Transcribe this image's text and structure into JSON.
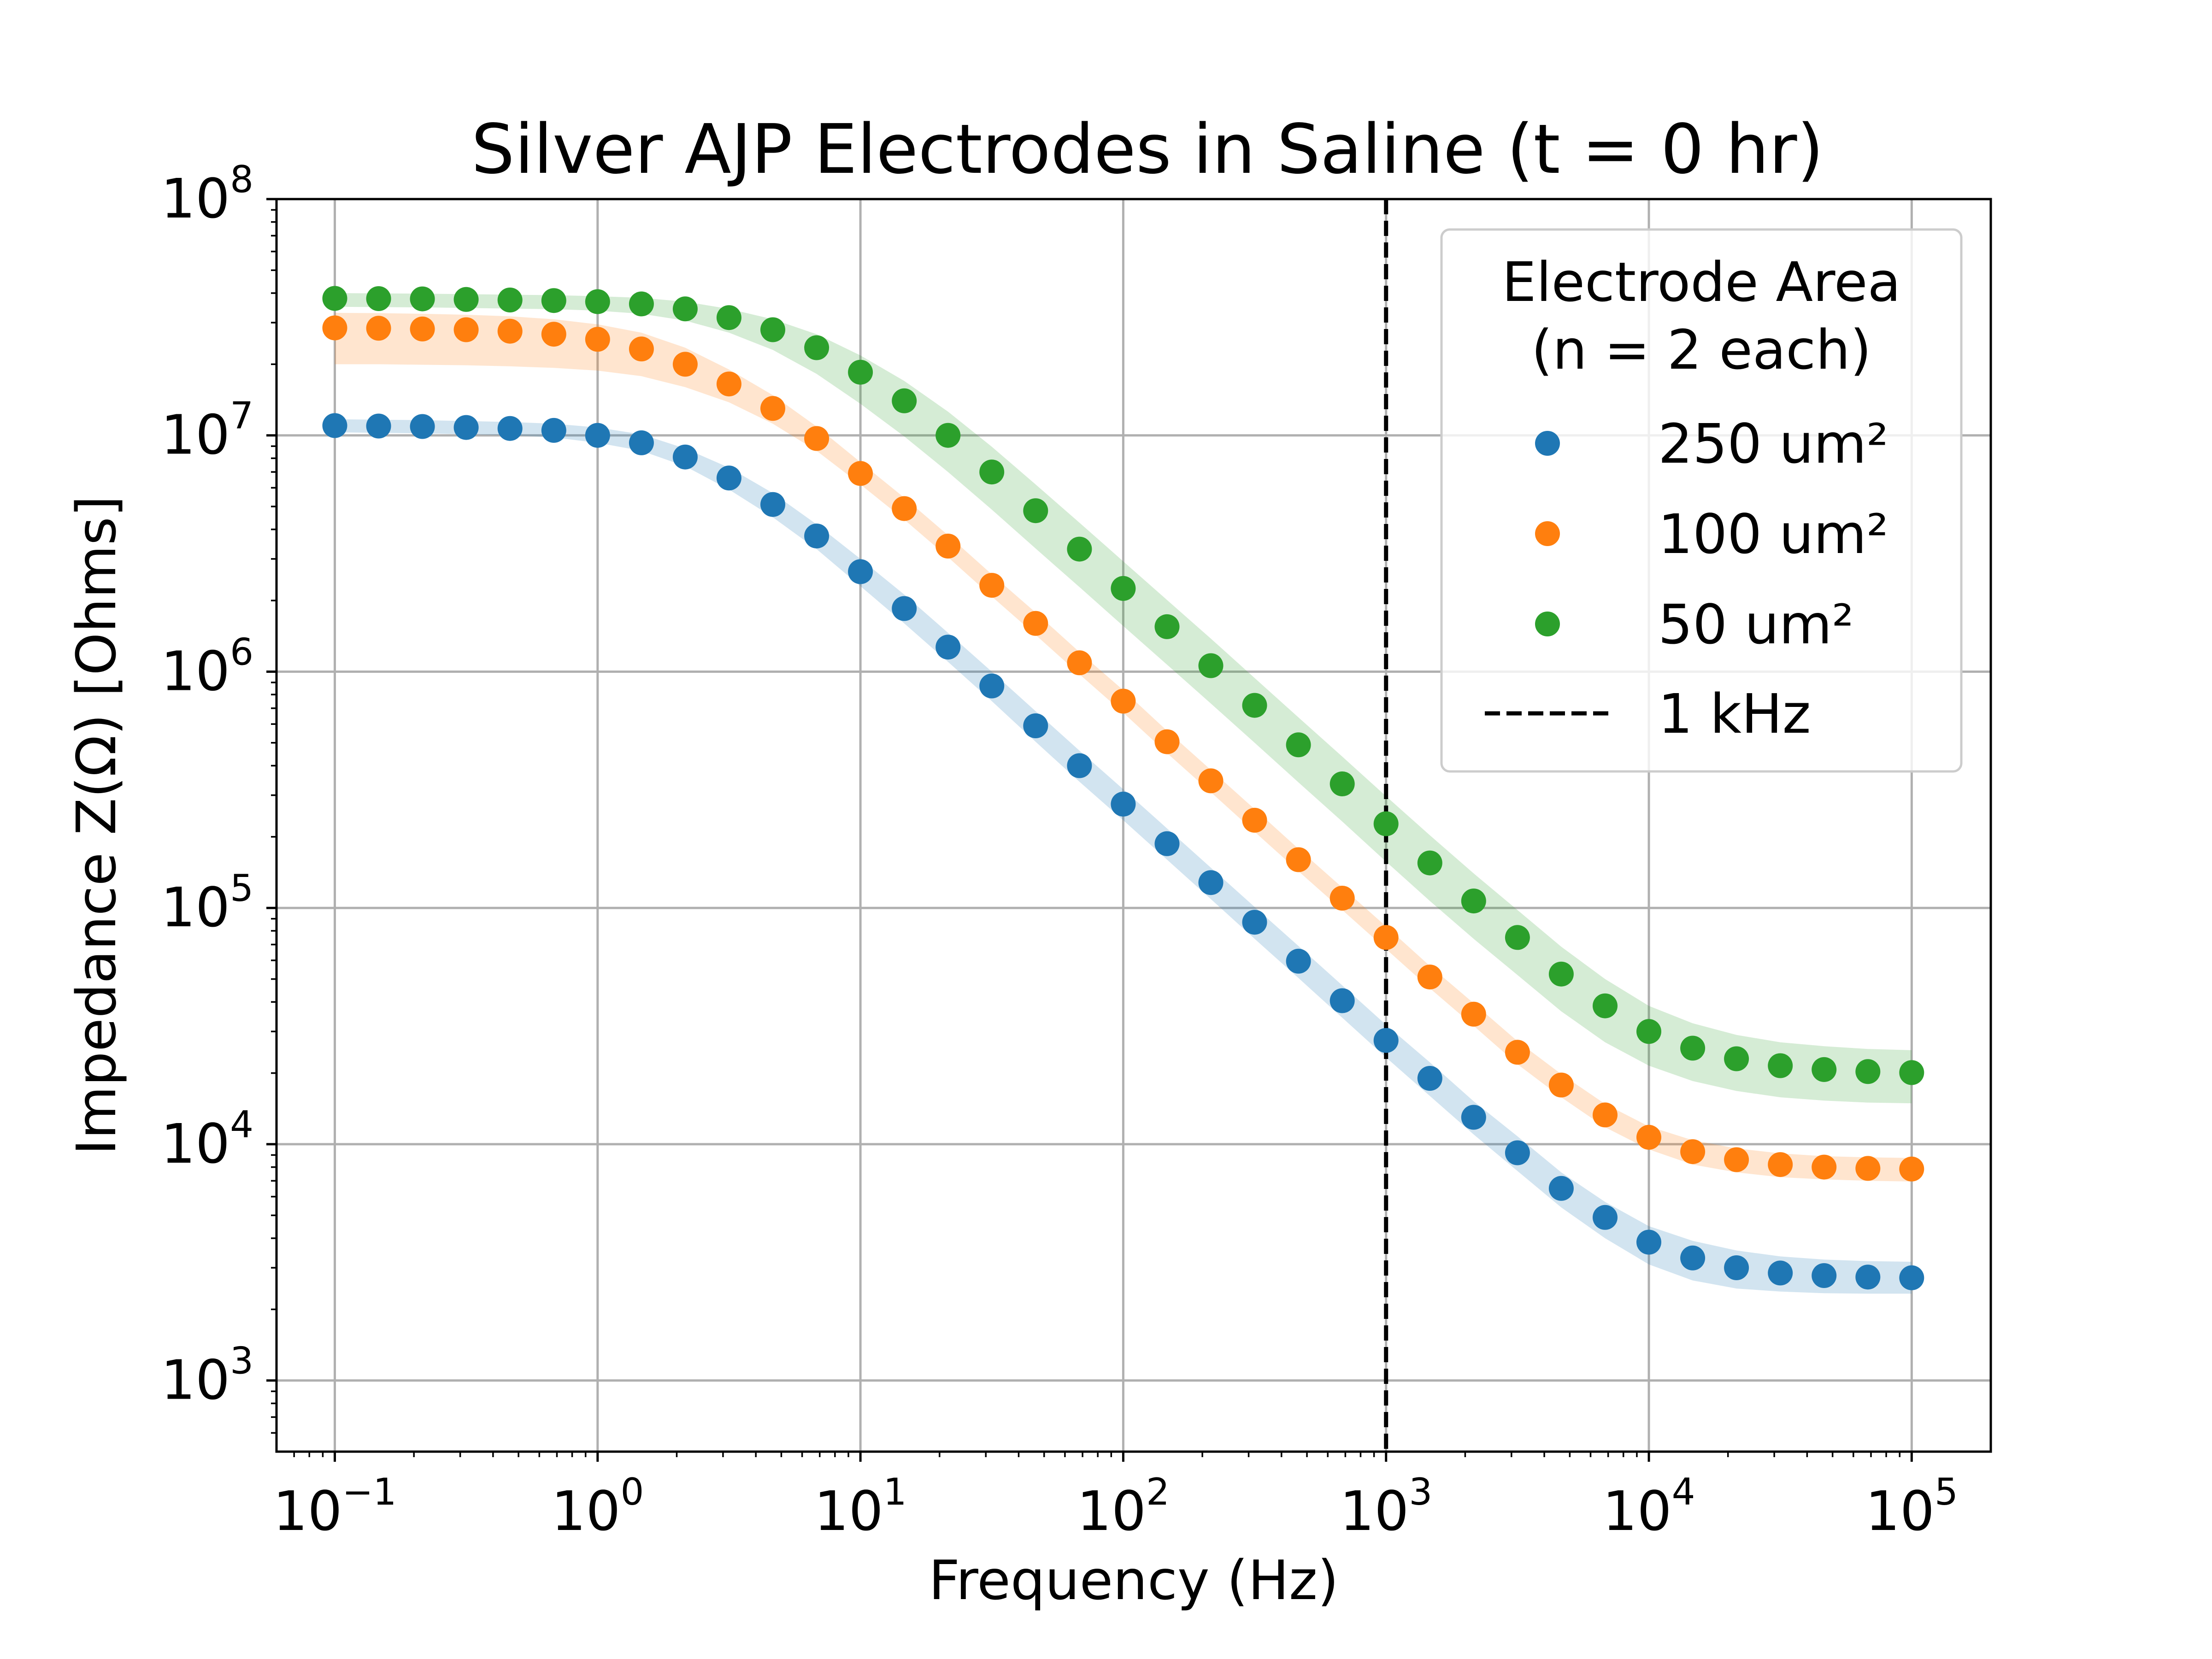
{
  "chart_data": {
    "type": "scatter",
    "title": "Silver AJP Electrodes in Saline (t = 0 hr)",
    "xlabel": "Frequency (Hz)",
    "ylabel": "Impedance Z(Ω) [Ohms]",
    "xscale": "log",
    "yscale": "log",
    "xlim": [
      0.06,
      200000
    ],
    "ylim": [
      500,
      100000000
    ],
    "x_ticks": [
      {
        "base": "10",
        "exp": "−1",
        "value": 0.1
      },
      {
        "base": "10",
        "exp": "0",
        "value": 1
      },
      {
        "base": "10",
        "exp": "1",
        "value": 10
      },
      {
        "base": "10",
        "exp": "2",
        "value": 100
      },
      {
        "base": "10",
        "exp": "3",
        "value": 1000
      },
      {
        "base": "10",
        "exp": "4",
        "value": 10000
      },
      {
        "base": "10",
        "exp": "5",
        "value": 100000
      }
    ],
    "y_ticks": [
      {
        "base": "10",
        "exp": "3",
        "value": 1000
      },
      {
        "base": "10",
        "exp": "4",
        "value": 10000
      },
      {
        "base": "10",
        "exp": "5",
        "value": 100000
      },
      {
        "base": "10",
        "exp": "6",
        "value": 1000000
      },
      {
        "base": "10",
        "exp": "7",
        "value": 10000000
      },
      {
        "base": "10",
        "exp": "8",
        "value": 100000000
      }
    ],
    "grid": true,
    "legend": {
      "placement": "top-right",
      "title_line1": "Electrode Area",
      "title_line2": "(n = 2 each)",
      "vline_label": "1 kHz"
    },
    "vline": {
      "x": 1000,
      "style": "dashed",
      "color": "#000000"
    },
    "x": [
      0.1,
      0.1468,
      0.2154,
      0.3162,
      0.4642,
      0.6813,
      1,
      1.468,
      2.154,
      3.162,
      4.642,
      6.813,
      10,
      14.68,
      21.54,
      31.62,
      46.42,
      68.13,
      100,
      146.8,
      215.4,
      316.2,
      464.2,
      681.3,
      1000,
      1468,
      2154,
      3162,
      4642,
      6813,
      10000,
      14680,
      21540,
      31620,
      46420,
      68130,
      100000
    ],
    "series": [
      {
        "name": "250 um²",
        "color": "#1f77b4",
        "values": [
          11000000,
          10950000,
          10900000,
          10800000,
          10700000,
          10500000,
          10000000,
          9300000,
          8100000,
          6600000,
          5100000,
          3750000,
          2650000,
          1850000,
          1270000,
          870000,
          590000,
          400000,
          275000,
          187000,
          128000,
          87000,
          59500,
          40500,
          27500,
          19000,
          13000,
          9200,
          6500,
          4900,
          3850,
          3300,
          3000,
          2850,
          2780,
          2740,
          2720
        ],
        "band_lower": [
          10300000,
          10250000,
          10200000,
          10100000,
          10000000,
          9800000,
          9300000,
          8600000,
          7400000,
          5900000,
          4500000,
          3300000,
          2300000,
          1600000,
          1100000,
          750000,
          505000,
          342000,
          235000,
          160000,
          109000,
          74000,
          50500,
          34300,
          23300,
          16000,
          11000,
          7700,
          5400,
          4000,
          3100,
          2650,
          2450,
          2380,
          2340,
          2330,
          2330
        ],
        "band_upper": [
          11700000,
          11650000,
          11600000,
          11500000,
          11400000,
          11200000,
          10800000,
          10100000,
          8800000,
          7300000,
          5700000,
          4200000,
          3000000,
          2120000,
          1460000,
          1000000,
          680000,
          463000,
          318000,
          217000,
          148000,
          101000,
          69000,
          47000,
          32000,
          22200,
          15200,
          10800,
          7600,
          5700,
          4500,
          3900,
          3550,
          3350,
          3250,
          3200,
          3180
        ]
      },
      {
        "name": "100 um²",
        "color": "#ff7f0e",
        "values": [
          28500000,
          28400000,
          28200000,
          28000000,
          27600000,
          26800000,
          25500000,
          23200000,
          20000000,
          16500000,
          13000000,
          9700000,
          6900000,
          4900000,
          3400000,
          2320000,
          1600000,
          1090000,
          750000,
          505000,
          345000,
          235000,
          160000,
          110000,
          75000,
          51000,
          35500,
          24500,
          17800,
          13300,
          10700,
          9300,
          8600,
          8200,
          8000,
          7900,
          7850
        ],
        "band_lower": [
          20000000,
          20000000,
          19900000,
          19800000,
          19600000,
          19300000,
          18800000,
          17800000,
          16000000,
          13800000,
          11200000,
          8600000,
          6200000,
          4400000,
          3050000,
          2080000,
          1430000,
          975000,
          670000,
          452000,
          309000,
          210000,
          143000,
          98000,
          67000,
          45700,
          31700,
          21800,
          15800,
          11800,
          9500,
          8200,
          7600,
          7250,
          7100,
          7000,
          6950
        ],
        "band_upper": [
          33000000,
          32900000,
          32700000,
          32400000,
          31900000,
          31000000,
          29500000,
          27200000,
          23500000,
          19000000,
          14800000,
          10900000,
          7700000,
          5450000,
          3780000,
          2580000,
          1780000,
          1210000,
          835000,
          562000,
          384000,
          262000,
          178000,
          122000,
          83500,
          56800,
          39500,
          27300,
          19800,
          14800,
          11900,
          10400,
          9600,
          9150,
          8900,
          8800,
          8750
        ]
      },
      {
        "name": "50 um²",
        "color": "#2ca02c",
        "values": [
          38000000,
          37900000,
          37800000,
          37600000,
          37400000,
          37200000,
          36800000,
          36000000,
          34300000,
          31500000,
          28000000,
          23500000,
          18500000,
          14000000,
          10000000,
          7000000,
          4800000,
          3300000,
          2250000,
          1550000,
          1060000,
          720000,
          490000,
          335000,
          227000,
          155000,
          107000,
          75000,
          52500,
          38500,
          30000,
          25500,
          23000,
          21500,
          20700,
          20300,
          20100
        ],
        "band_lower": [
          35000000,
          34900000,
          34800000,
          34600000,
          34400000,
          34200000,
          33700000,
          32700000,
          30600000,
          27200000,
          23000000,
          18200000,
          13600000,
          9900000,
          7000000,
          4850000,
          3320000,
          2280000,
          1560000,
          1070000,
          733000,
          500000,
          340000,
          232000,
          157000,
          107000,
          74000,
          52000,
          36500,
          27000,
          21500,
          18500,
          16800,
          15800,
          15300,
          15000,
          14900
        ],
        "band_upper": [
          40000000,
          39900000,
          39800000,
          39600000,
          39400000,
          39200000,
          38800000,
          38200000,
          36800000,
          34300000,
          31000000,
          26800000,
          21800000,
          17000000,
          12600000,
          8950000,
          6200000,
          4270000,
          2930000,
          2010000,
          1380000,
          940000,
          640000,
          437000,
          297000,
          203000,
          140000,
          98000,
          68500,
          50000,
          38500,
          32500,
          29000,
          27000,
          26000,
          25300,
          25000
        ]
      }
    ]
  }
}
